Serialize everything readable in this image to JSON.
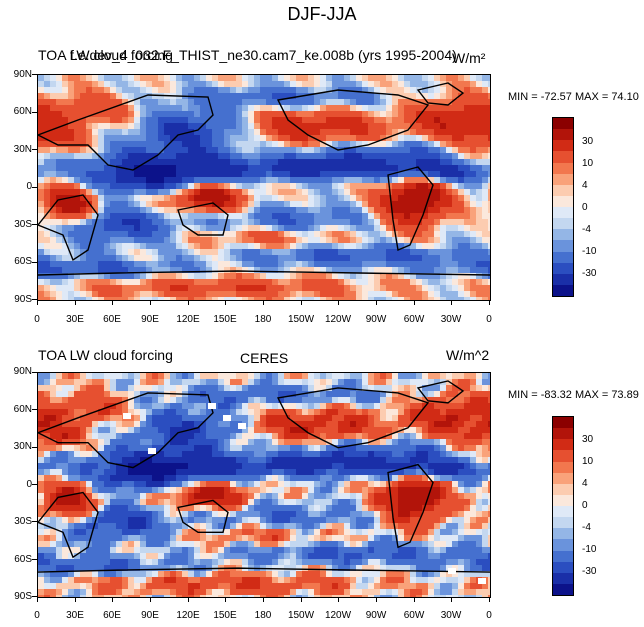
{
  "figure": {
    "title": "DJF-JJA"
  },
  "panels": [
    {
      "title_left": "TOA LW cloud forcing",
      "title_left_overprint": "f.e.dev_4_032.F_THIST_ne30.cam7_ke.008b (yrs 1995-2004)",
      "title_center": "",
      "title_right": "W/m²",
      "min_max": "MIN = -72.57 MAX =  74.10",
      "variant": 0
    },
    {
      "title_left": "TOA LW cloud forcing",
      "title_left_overprint": "",
      "title_center": "CERES",
      "title_right": "W/m^2",
      "min_max": "MIN = -83.32 MAX =  73.89",
      "variant": 1
    }
  ],
  "axes": {
    "lat_labels": [
      "90N",
      "60N",
      "30N",
      "0",
      "30S",
      "60S",
      "90S"
    ],
    "lon_labels": [
      "0",
      "30E",
      "60E",
      "90E",
      "120E",
      "150E",
      "180",
      "150W",
      "120W",
      "90W",
      "60W",
      "30W",
      "0"
    ]
  },
  "colorbar": {
    "labels": [
      "30",
      "10",
      "4",
      "0",
      "-4",
      "-10",
      "-30"
    ],
    "colors": [
      "#8b0000",
      "#b2140a",
      "#d12b15",
      "#e65030",
      "#f2774e",
      "#f9a27a",
      "#fcccb0",
      "#fbe8dc",
      "#dfe9f7",
      "#c3d7f0",
      "#94b6e6",
      "#6a93dc",
      "#4570cf",
      "#2b4ec0",
      "#1a2fa8",
      "#0c128a"
    ]
  }
}
